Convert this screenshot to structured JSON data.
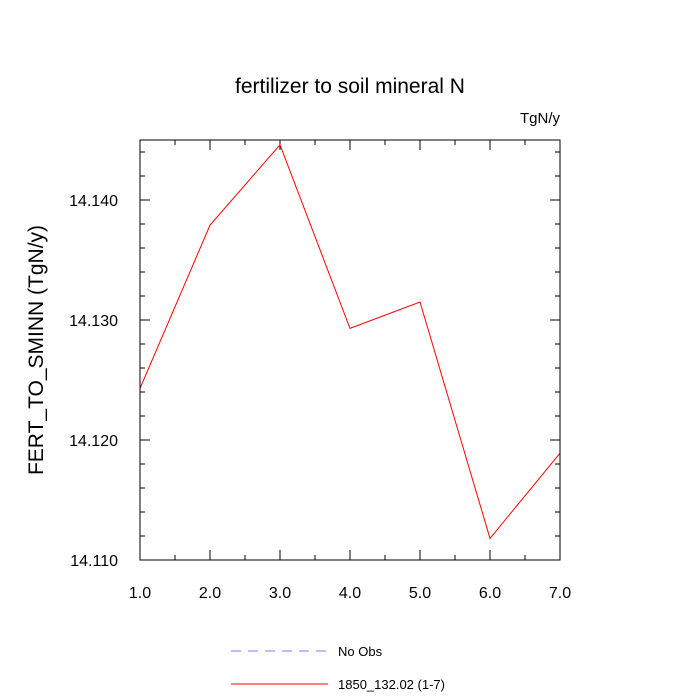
{
  "chart_data": {
    "type": "line",
    "title": "fertilizer to soil mineral N",
    "units_label": "TgN/y",
    "xlabel": "",
    "ylabel": "FERT_TO_SMINN  (TgN/y)",
    "xlim": [
      1.0,
      7.0
    ],
    "ylim": [
      14.11,
      14.145
    ],
    "x_ticks": [
      "1.0",
      "2.0",
      "3.0",
      "4.0",
      "5.0",
      "6.0",
      "7.0"
    ],
    "y_ticks": [
      "14.110",
      "14.120",
      "14.130",
      "14.140"
    ],
    "series": [
      {
        "name": "1850_132.02 (1-7)",
        "color": "#ff0000",
        "style": "solid",
        "x": [
          1,
          2,
          3,
          4,
          5,
          6,
          7
        ],
        "y": [
          14.1243,
          14.1379,
          14.1446,
          14.1293,
          14.1315,
          14.1118,
          14.1189
        ]
      }
    ],
    "legend": [
      {
        "label": "No Obs",
        "color": "#7f7fff",
        "style": "dashed"
      },
      {
        "label": "1850_132.02 (1-7)",
        "color": "#ff0000",
        "style": "solid"
      }
    ],
    "legend_position": "bottom-center",
    "grid": false
  }
}
